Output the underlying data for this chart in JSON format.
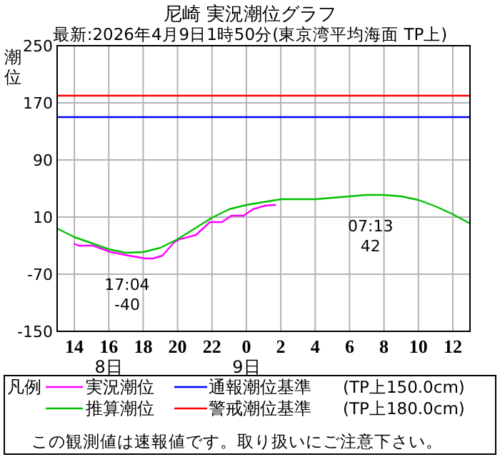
{
  "chart_data": {
    "type": "line",
    "title": "尼崎 実況潮位グラフ",
    "subtitle": "最新:2026年4月9日1時50分(東京湾平均海面 TP上)",
    "ylabel": "潮位",
    "xlim": [
      "2026-04-08T13:00",
      "2026-04-09T13:00"
    ],
    "xticks": [
      {
        "value": "2026-04-08T14:00",
        "label": "14"
      },
      {
        "value": "2026-04-08T16:00",
        "label": "16\n8日"
      },
      {
        "value": "2026-04-08T18:00",
        "label": "18"
      },
      {
        "value": "2026-04-08T20:00",
        "label": "20"
      },
      {
        "value": "2026-04-08T22:00",
        "label": "22"
      },
      {
        "value": "2026-04-09T00:00",
        "label": "0\n9日"
      },
      {
        "value": "2026-04-09T02:00",
        "label": "2"
      },
      {
        "value": "2026-04-09T04:00",
        "label": "4"
      },
      {
        "value": "2026-04-09T06:00",
        "label": "6"
      },
      {
        "value": "2026-04-09T08:00",
        "label": "8"
      },
      {
        "value": "2026-04-09T10:00",
        "label": "10"
      },
      {
        "value": "2026-04-09T12:00",
        "label": "12"
      }
    ],
    "ylim": [
      -150,
      250
    ],
    "yticks": [
      -150,
      -70,
      10,
      90,
      170,
      250
    ],
    "grid": true,
    "legend": "bottom",
    "line_style": "solid",
    "marker": "none",
    "series": [
      {
        "name": "実況潮位",
        "color": "#ff00ff",
        "x": [
          "2026-04-08T13:58",
          "2026-04-08T14:15",
          "2026-04-08T15:05",
          "2026-04-08T16:07",
          "2026-04-08T17:10",
          "2026-04-08T18:08",
          "2026-04-08T18:34",
          "2026-04-08T19:07",
          "2026-04-08T19:49",
          "2026-04-08T20:08",
          "2026-04-08T21:04",
          "2026-04-08T21:53",
          "2026-04-08T22:35",
          "2026-04-08T23:08",
          "2026-04-08T23:50",
          "2026-04-09T00:23",
          "2026-04-09T01:05",
          "2026-04-09T01:43"
        ],
        "values": [
          -27,
          -30,
          -30,
          -39,
          -44,
          -48,
          -48,
          -44,
          -25,
          -21,
          -15,
          3,
          3,
          12,
          12,
          21,
          26,
          27
        ]
      },
      {
        "name": "推算潮位",
        "color": "#00c000",
        "x": [
          "2026-04-08T13:00",
          "2026-04-08T14:00",
          "2026-04-08T16:00",
          "2026-04-08T17:00",
          "2026-04-08T18:00",
          "2026-04-08T19:00",
          "2026-04-08T20:00",
          "2026-04-08T21:00",
          "2026-04-08T22:00",
          "2026-04-08T23:00",
          "2026-04-09T00:00",
          "2026-04-09T01:00",
          "2026-04-09T02:00",
          "2026-04-09T04:00",
          "2026-04-09T06:00",
          "2026-04-09T07:00",
          "2026-04-09T08:00",
          "2026-04-09T09:00",
          "2026-04-09T10:00",
          "2026-04-09T11:00",
          "2026-04-09T12:00",
          "2026-04-09T13:00"
        ],
        "values": [
          -6,
          -18,
          -35,
          -40,
          -39,
          -33,
          -21,
          -6,
          9,
          21,
          27,
          31,
          35,
          35,
          39,
          41,
          41,
          39,
          34,
          25,
          14,
          1
        ]
      }
    ],
    "ref_lines": [
      {
        "axis": "y",
        "value": 150,
        "label": "通報潮位基準",
        "color": "#0000ff"
      },
      {
        "axis": "y",
        "value": 180,
        "label": "警戒潮位基準",
        "color": "#ff0000"
      }
    ],
    "legend_title": "凡例",
    "annotations": [
      {
        "text": "17:04\n-40",
        "x": "2026-04-08T17:04",
        "y": -40
      },
      {
        "text": "07:13\n42",
        "x": "2026-04-09T07:13",
        "y": 42
      },
      "(TP上150.0cm)",
      "(TP上180.0cm)",
      "この観測値は速報値です。取り扱いにご注意下さい。"
    ]
  }
}
